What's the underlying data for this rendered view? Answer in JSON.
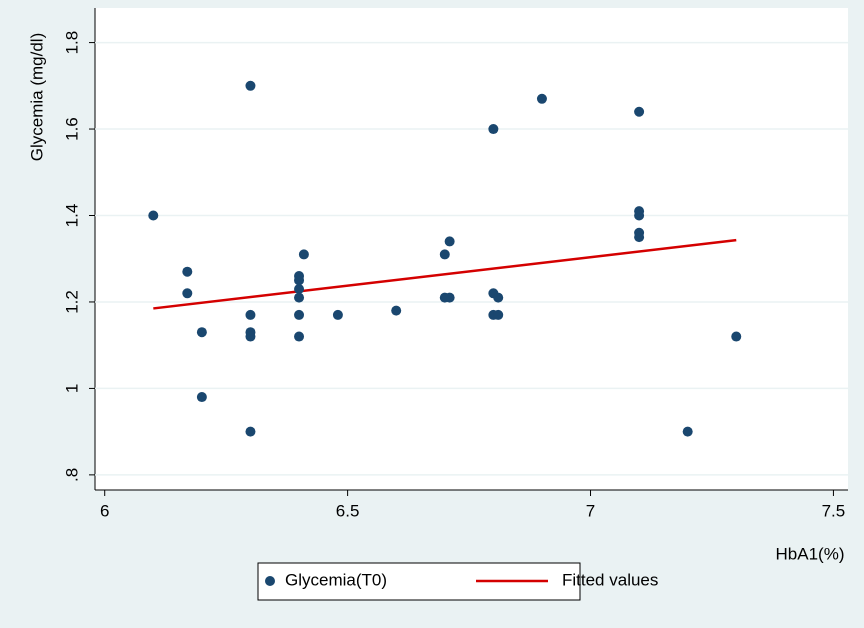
{
  "chart_data": {
    "type": "scatter",
    "y_label": "Glycemia (mg/dl)",
    "x_label": "HbA1(%)",
    "xlim": [
      5.98,
      7.53
    ],
    "ylim": [
      0.765,
      1.88
    ],
    "xticks": [
      6,
      6.5,
      7,
      7.5
    ],
    "yticks": [
      {
        "value": 0.8,
        "label": ".8"
      },
      1,
      1.2,
      1.4,
      1.6,
      1.8
    ],
    "grid": true,
    "series": [
      {
        "name": "Glycemia(T0)",
        "type": "scatter",
        "color": "#1a476f",
        "x": [
          6.1,
          6.17,
          6.17,
          6.2,
          6.2,
          6.3,
          6.3,
          6.3,
          6.3,
          6.3,
          6.4,
          6.4,
          6.4,
          6.4,
          6.4,
          6.4,
          6.41,
          6.48,
          6.6,
          6.7,
          6.7,
          6.71,
          6.71,
          6.8,
          6.8,
          6.8,
          6.81,
          6.81,
          6.9,
          7.1,
          7.1,
          7.1,
          7.1,
          7.1,
          7.2,
          7.3
        ],
        "values": [
          1.4,
          1.27,
          1.22,
          1.13,
          0.98,
          1.7,
          1.17,
          1.13,
          1.12,
          0.9,
          1.26,
          1.25,
          1.23,
          1.21,
          1.17,
          1.12,
          1.31,
          1.17,
          1.18,
          1.31,
          1.21,
          1.34,
          1.21,
          1.6,
          1.22,
          1.17,
          1.21,
          1.17,
          1.67,
          1.64,
          1.41,
          1.4,
          1.36,
          1.35,
          0.9,
          1.12
        ]
      },
      {
        "name": "Fitted values",
        "type": "line",
        "color": "#d40000",
        "x": [
          6.1,
          7.3
        ],
        "values": [
          1.185,
          1.343
        ]
      }
    ]
  }
}
